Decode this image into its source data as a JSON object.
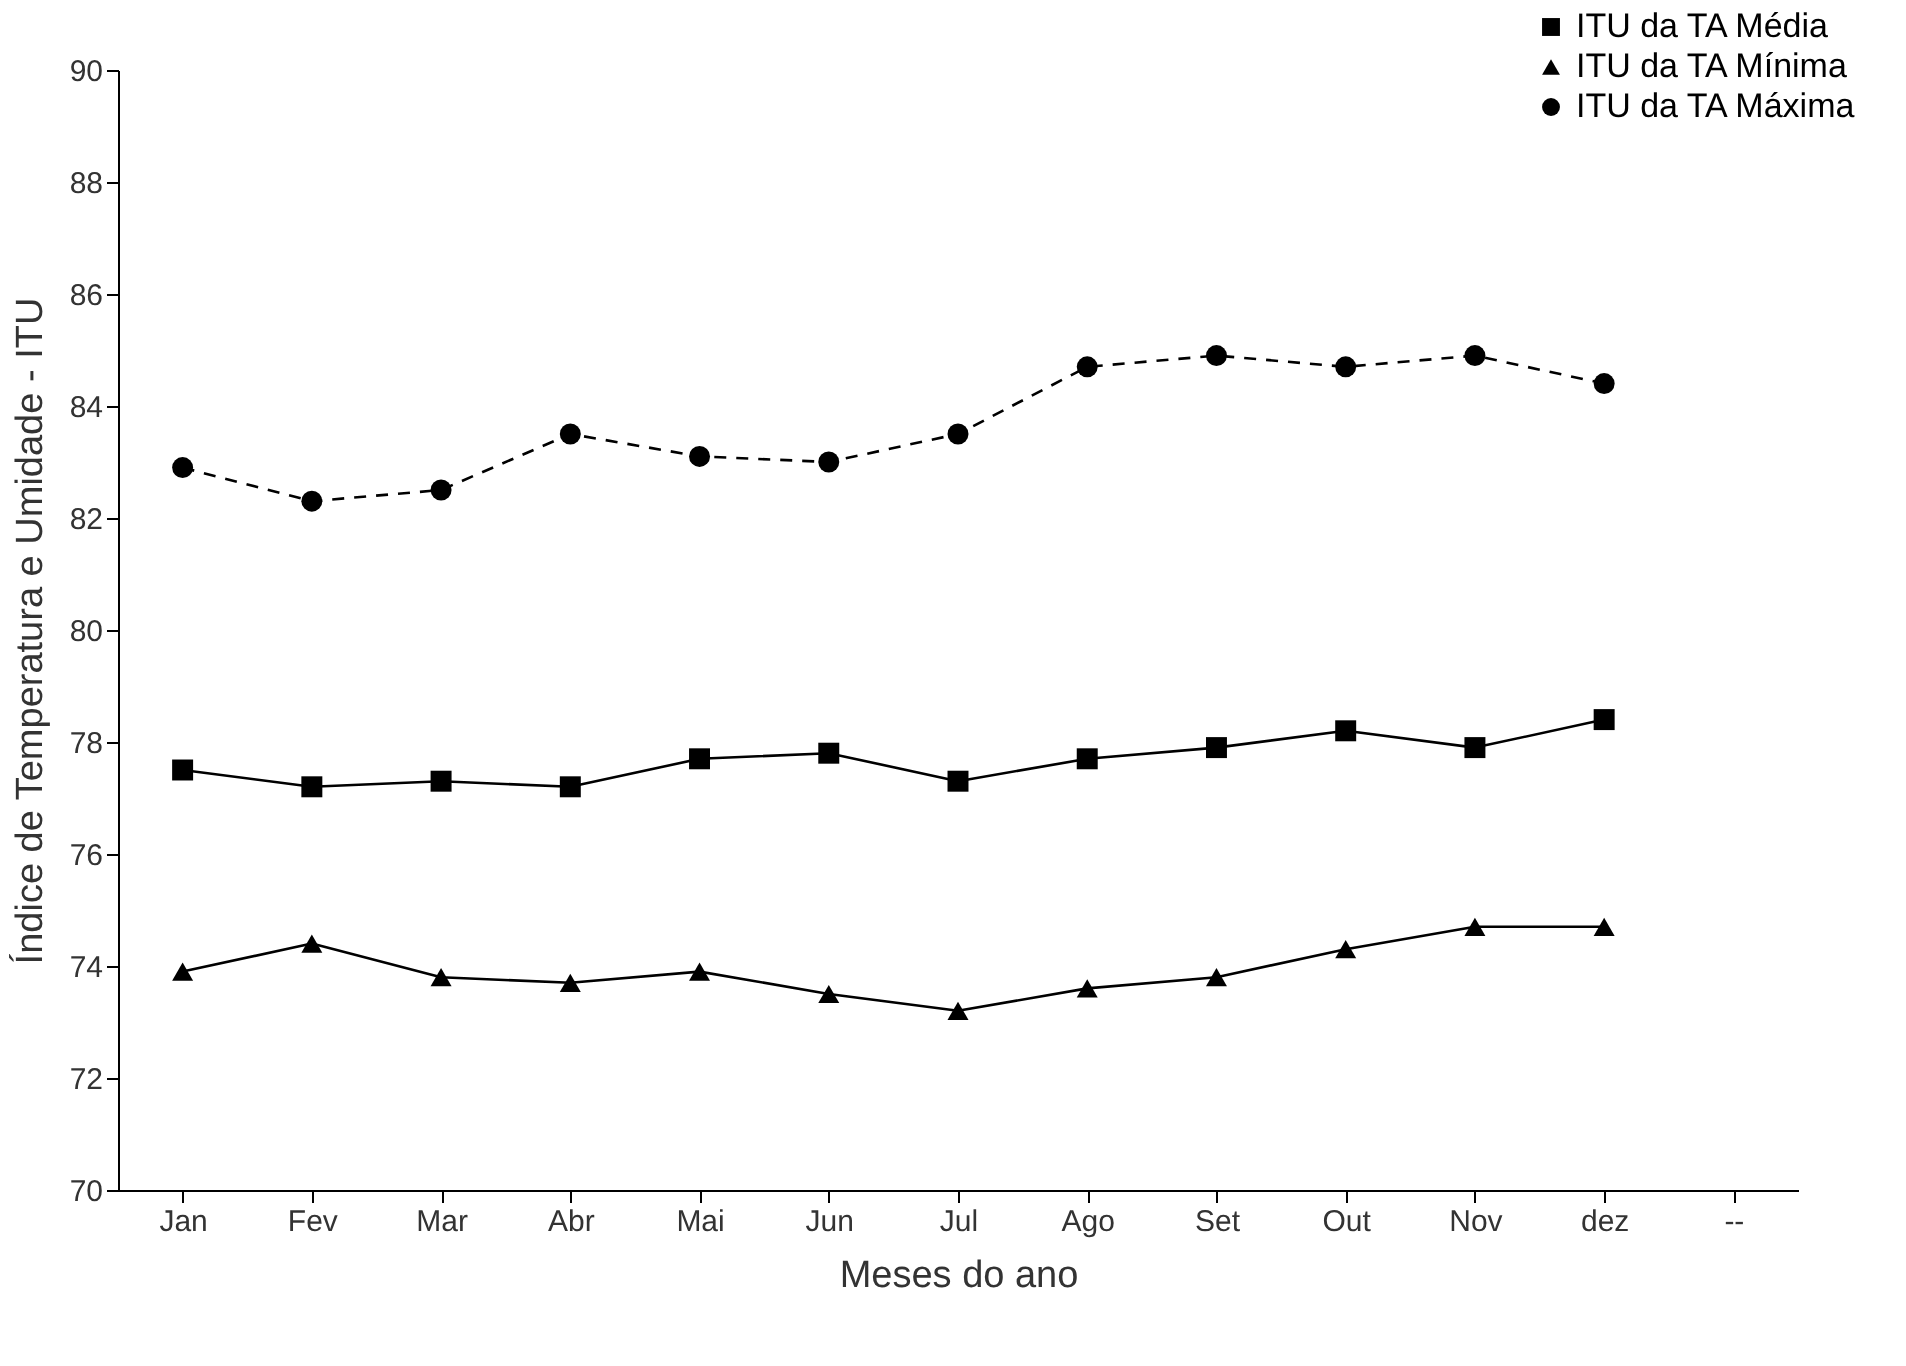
{
  "chart_data": {
    "type": "line",
    "xlabel": "Meses do ano",
    "ylabel": "Índice de Temperatura e Umidade - ITU",
    "categories": [
      "Jan",
      "Fev",
      "Mar",
      "Abr",
      "Mai",
      "Jun",
      "Jul",
      "Ago",
      "Set",
      "Out",
      "Nov",
      "dez",
      "--"
    ],
    "series": [
      {
        "name": "ITU da TA Média",
        "color": "#000000",
        "marker": "square",
        "line_style": "solid",
        "values": [
          77.5,
          77.2,
          77.3,
          77.2,
          77.7,
          77.8,
          77.3,
          77.7,
          77.9,
          78.2,
          77.9,
          78.4,
          null
        ]
      },
      {
        "name": "ITU da TA Mínima",
        "color": "#000000",
        "marker": "triangle",
        "line_style": "solid",
        "values": [
          73.9,
          74.4,
          73.8,
          73.7,
          73.9,
          73.5,
          73.2,
          73.6,
          73.8,
          74.3,
          74.7,
          74.7,
          null
        ]
      },
      {
        "name": "ITU da TA Máxima",
        "color": "#000000",
        "marker": "circle",
        "line_style": "dashed",
        "values": [
          82.9,
          82.3,
          82.5,
          83.5,
          83.1,
          83.0,
          83.5,
          84.7,
          84.9,
          84.7,
          84.9,
          84.4,
          null
        ]
      }
    ],
    "ylim": [
      70,
      90
    ],
    "yticks": [
      70,
      72,
      74,
      76,
      78,
      80,
      82,
      84,
      86,
      88,
      90
    ],
    "grid": false,
    "legend": "top right"
  }
}
